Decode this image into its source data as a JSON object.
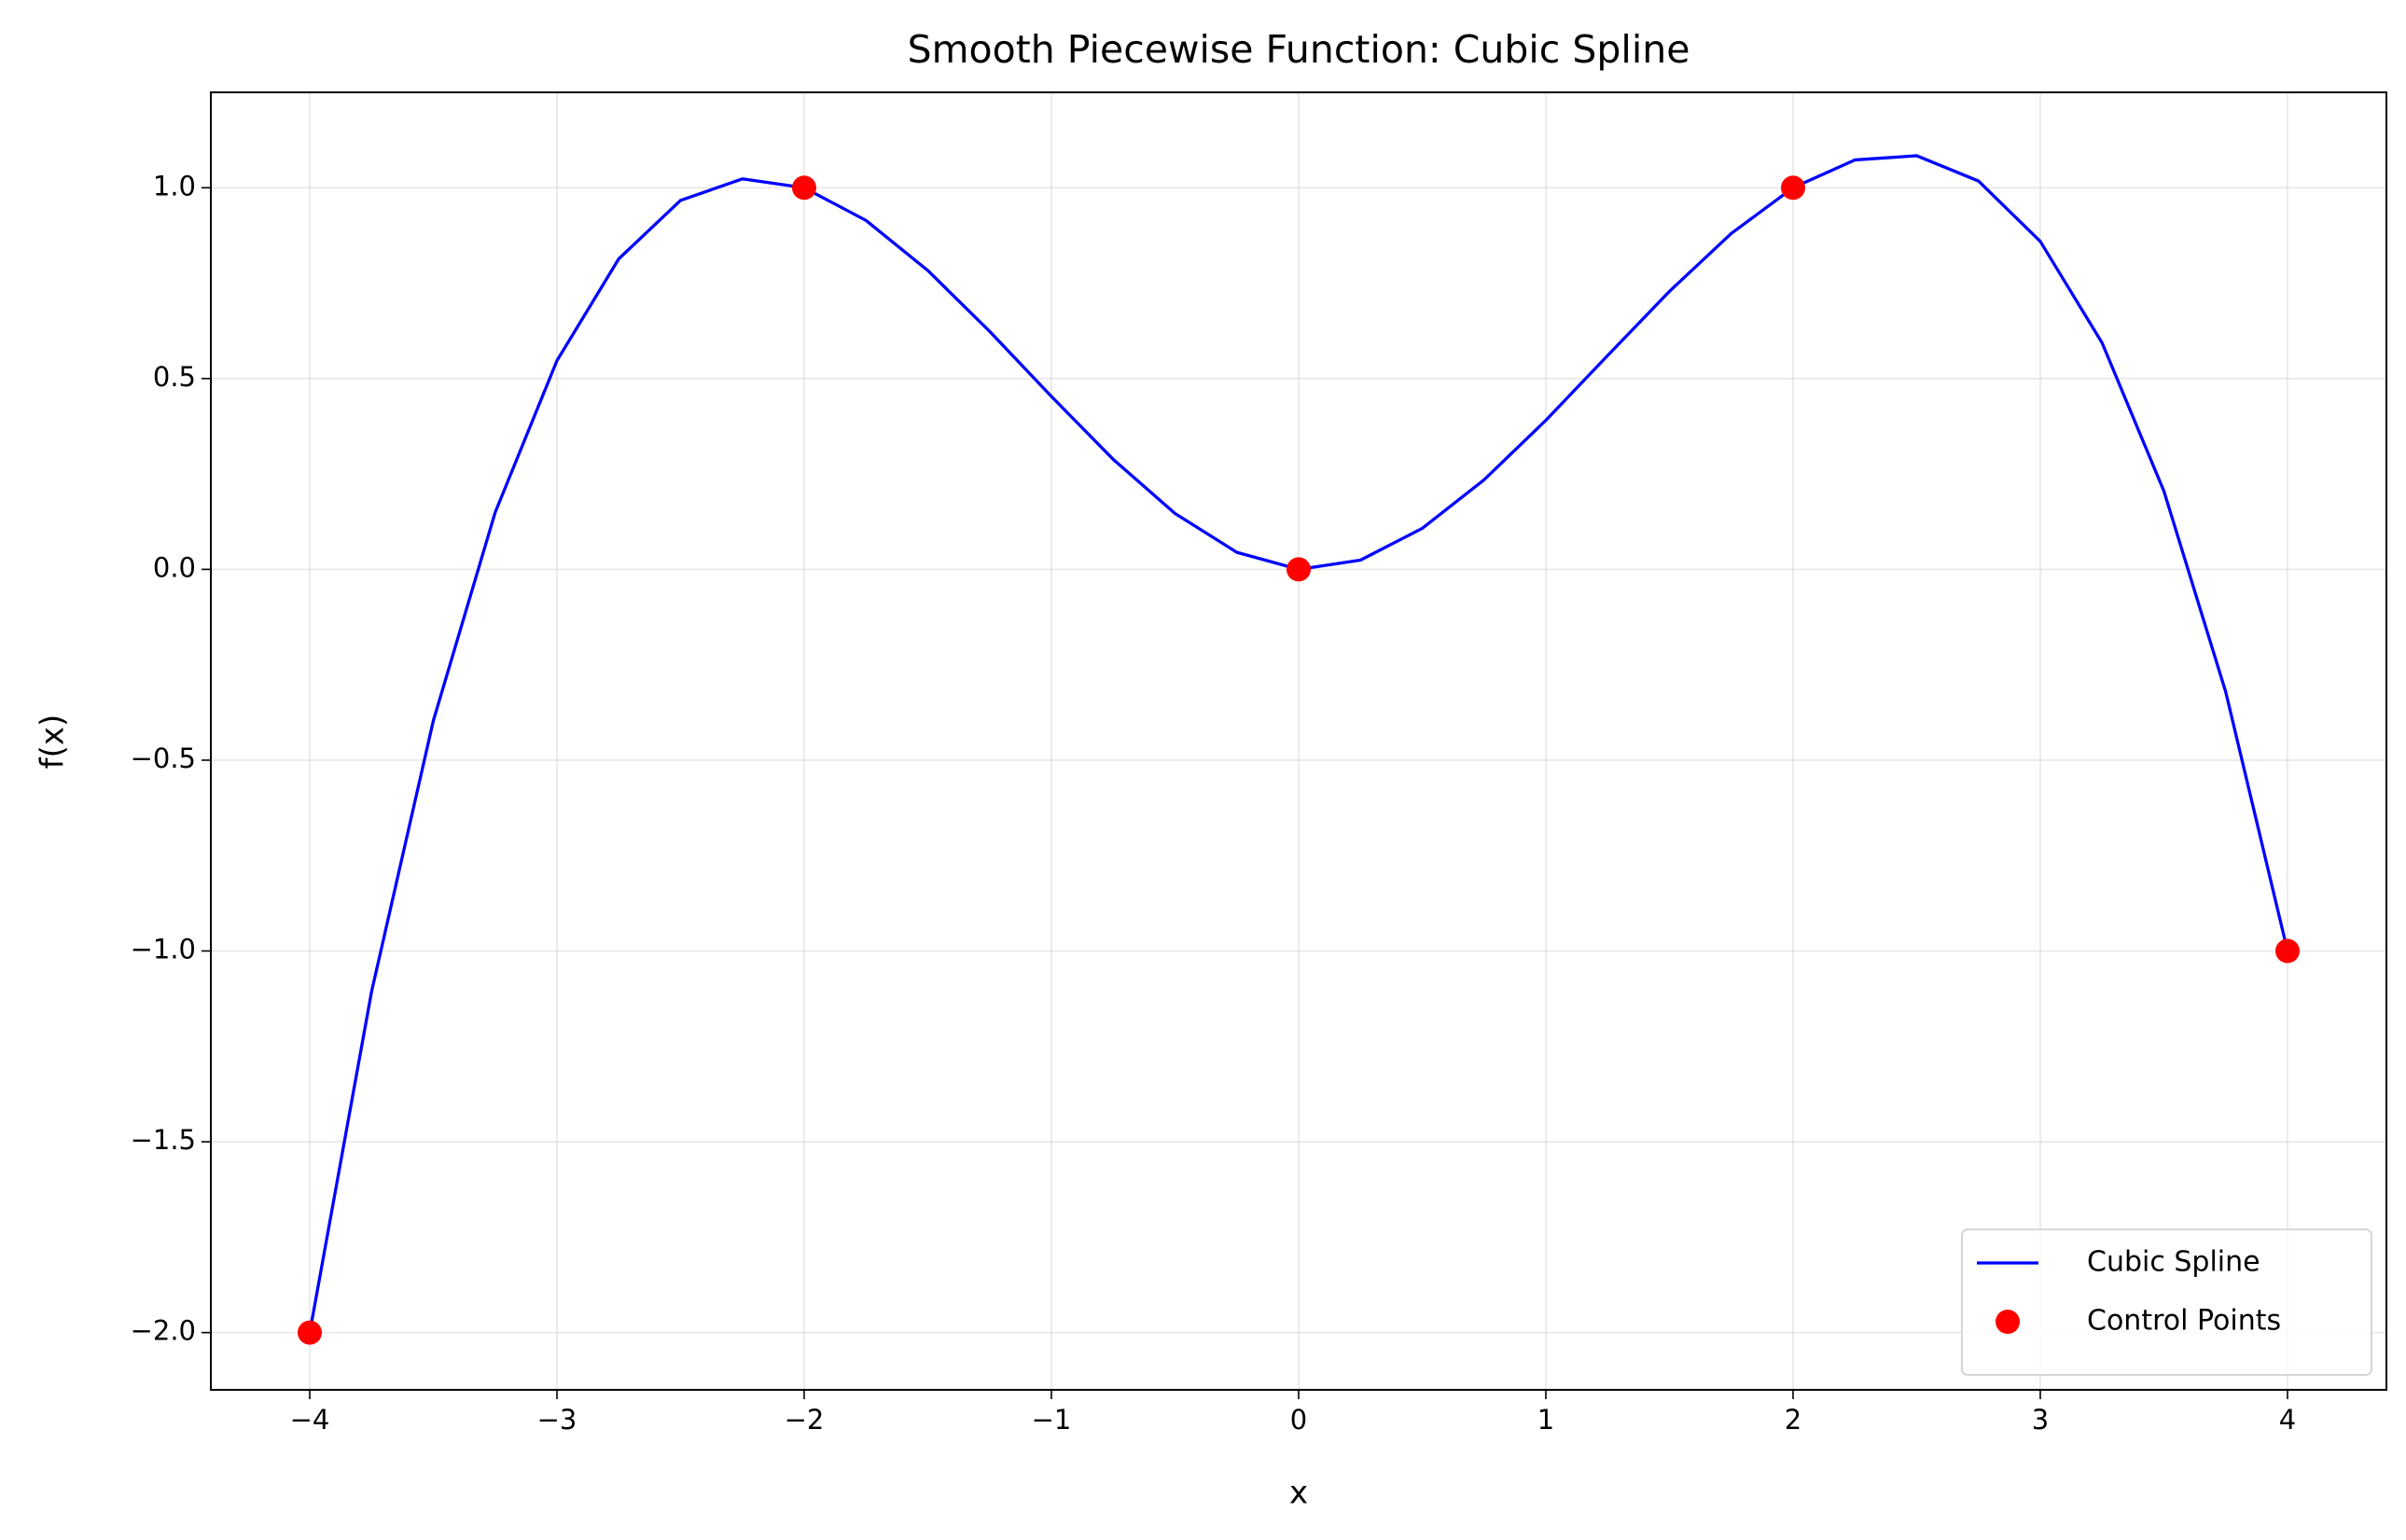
{
  "chart_data": {
    "type": "line",
    "title": "Smooth Piecewise Function: Cubic Spline",
    "xlabel": "x",
    "ylabel": "f(x)",
    "xlim": [
      -4.4,
      4.4
    ],
    "ylim": [
      -2.15,
      1.25
    ],
    "xticks": [
      {
        "value": -4,
        "label": "−4"
      },
      {
        "value": -3,
        "label": "−3"
      },
      {
        "value": -2,
        "label": "−2"
      },
      {
        "value": -1,
        "label": "−1"
      },
      0,
      1,
      2,
      3,
      4
    ],
    "yticks": [
      {
        "value": -2,
        "label": "−2.0"
      },
      {
        "value": -1.5,
        "label": "−1.5"
      },
      {
        "value": -1,
        "label": "−1.0"
      },
      {
        "value": -0.5,
        "label": "−0.5"
      },
      {
        "value": 0,
        "label": "0.0"
      },
      {
        "value": 0.5,
        "label": "0.5"
      },
      {
        "value": 1,
        "label": "1.0"
      }
    ],
    "grid": true,
    "legend": "lower right",
    "series": [
      {
        "name": "Cubic Spline",
        "type": "line",
        "color": "#0000ff",
        "x": [
          -4,
          -3.75,
          -3.5,
          -3.25,
          -3,
          -2.75,
          -2.5,
          -2.25,
          -2,
          -1.75,
          -1.5,
          -1.25,
          -1,
          -0.75,
          -0.5,
          -0.25,
          0,
          0.25,
          0.5,
          0.75,
          1,
          1.25,
          1.5,
          1.75,
          2,
          2.25,
          2.5,
          2.75,
          3,
          3.25,
          3.5,
          3.75,
          4
        ],
        "values": [
          -2,
          -1.107,
          -0.3965,
          0.149,
          0.5469,
          0.8137,
          0.9668,
          1.0232,
          1,
          0.9143,
          0.7832,
          0.6238,
          0.4531,
          0.2883,
          0.1465,
          0.0447,
          0,
          0.0242,
          0.1074,
          0.2346,
          0.3906,
          0.5603,
          0.7285,
          0.8802,
          1,
          1.0729,
          1.0839,
          1.0177,
          0.8594,
          0.5935,
          0.205,
          -0.3211,
          -1
        ]
      },
      {
        "name": "Control Points",
        "type": "scatter",
        "color": "#ff0000",
        "x": [
          -4,
          -2,
          0,
          2,
          4
        ],
        "values": [
          -2,
          1,
          0,
          1,
          -1
        ]
      }
    ]
  }
}
